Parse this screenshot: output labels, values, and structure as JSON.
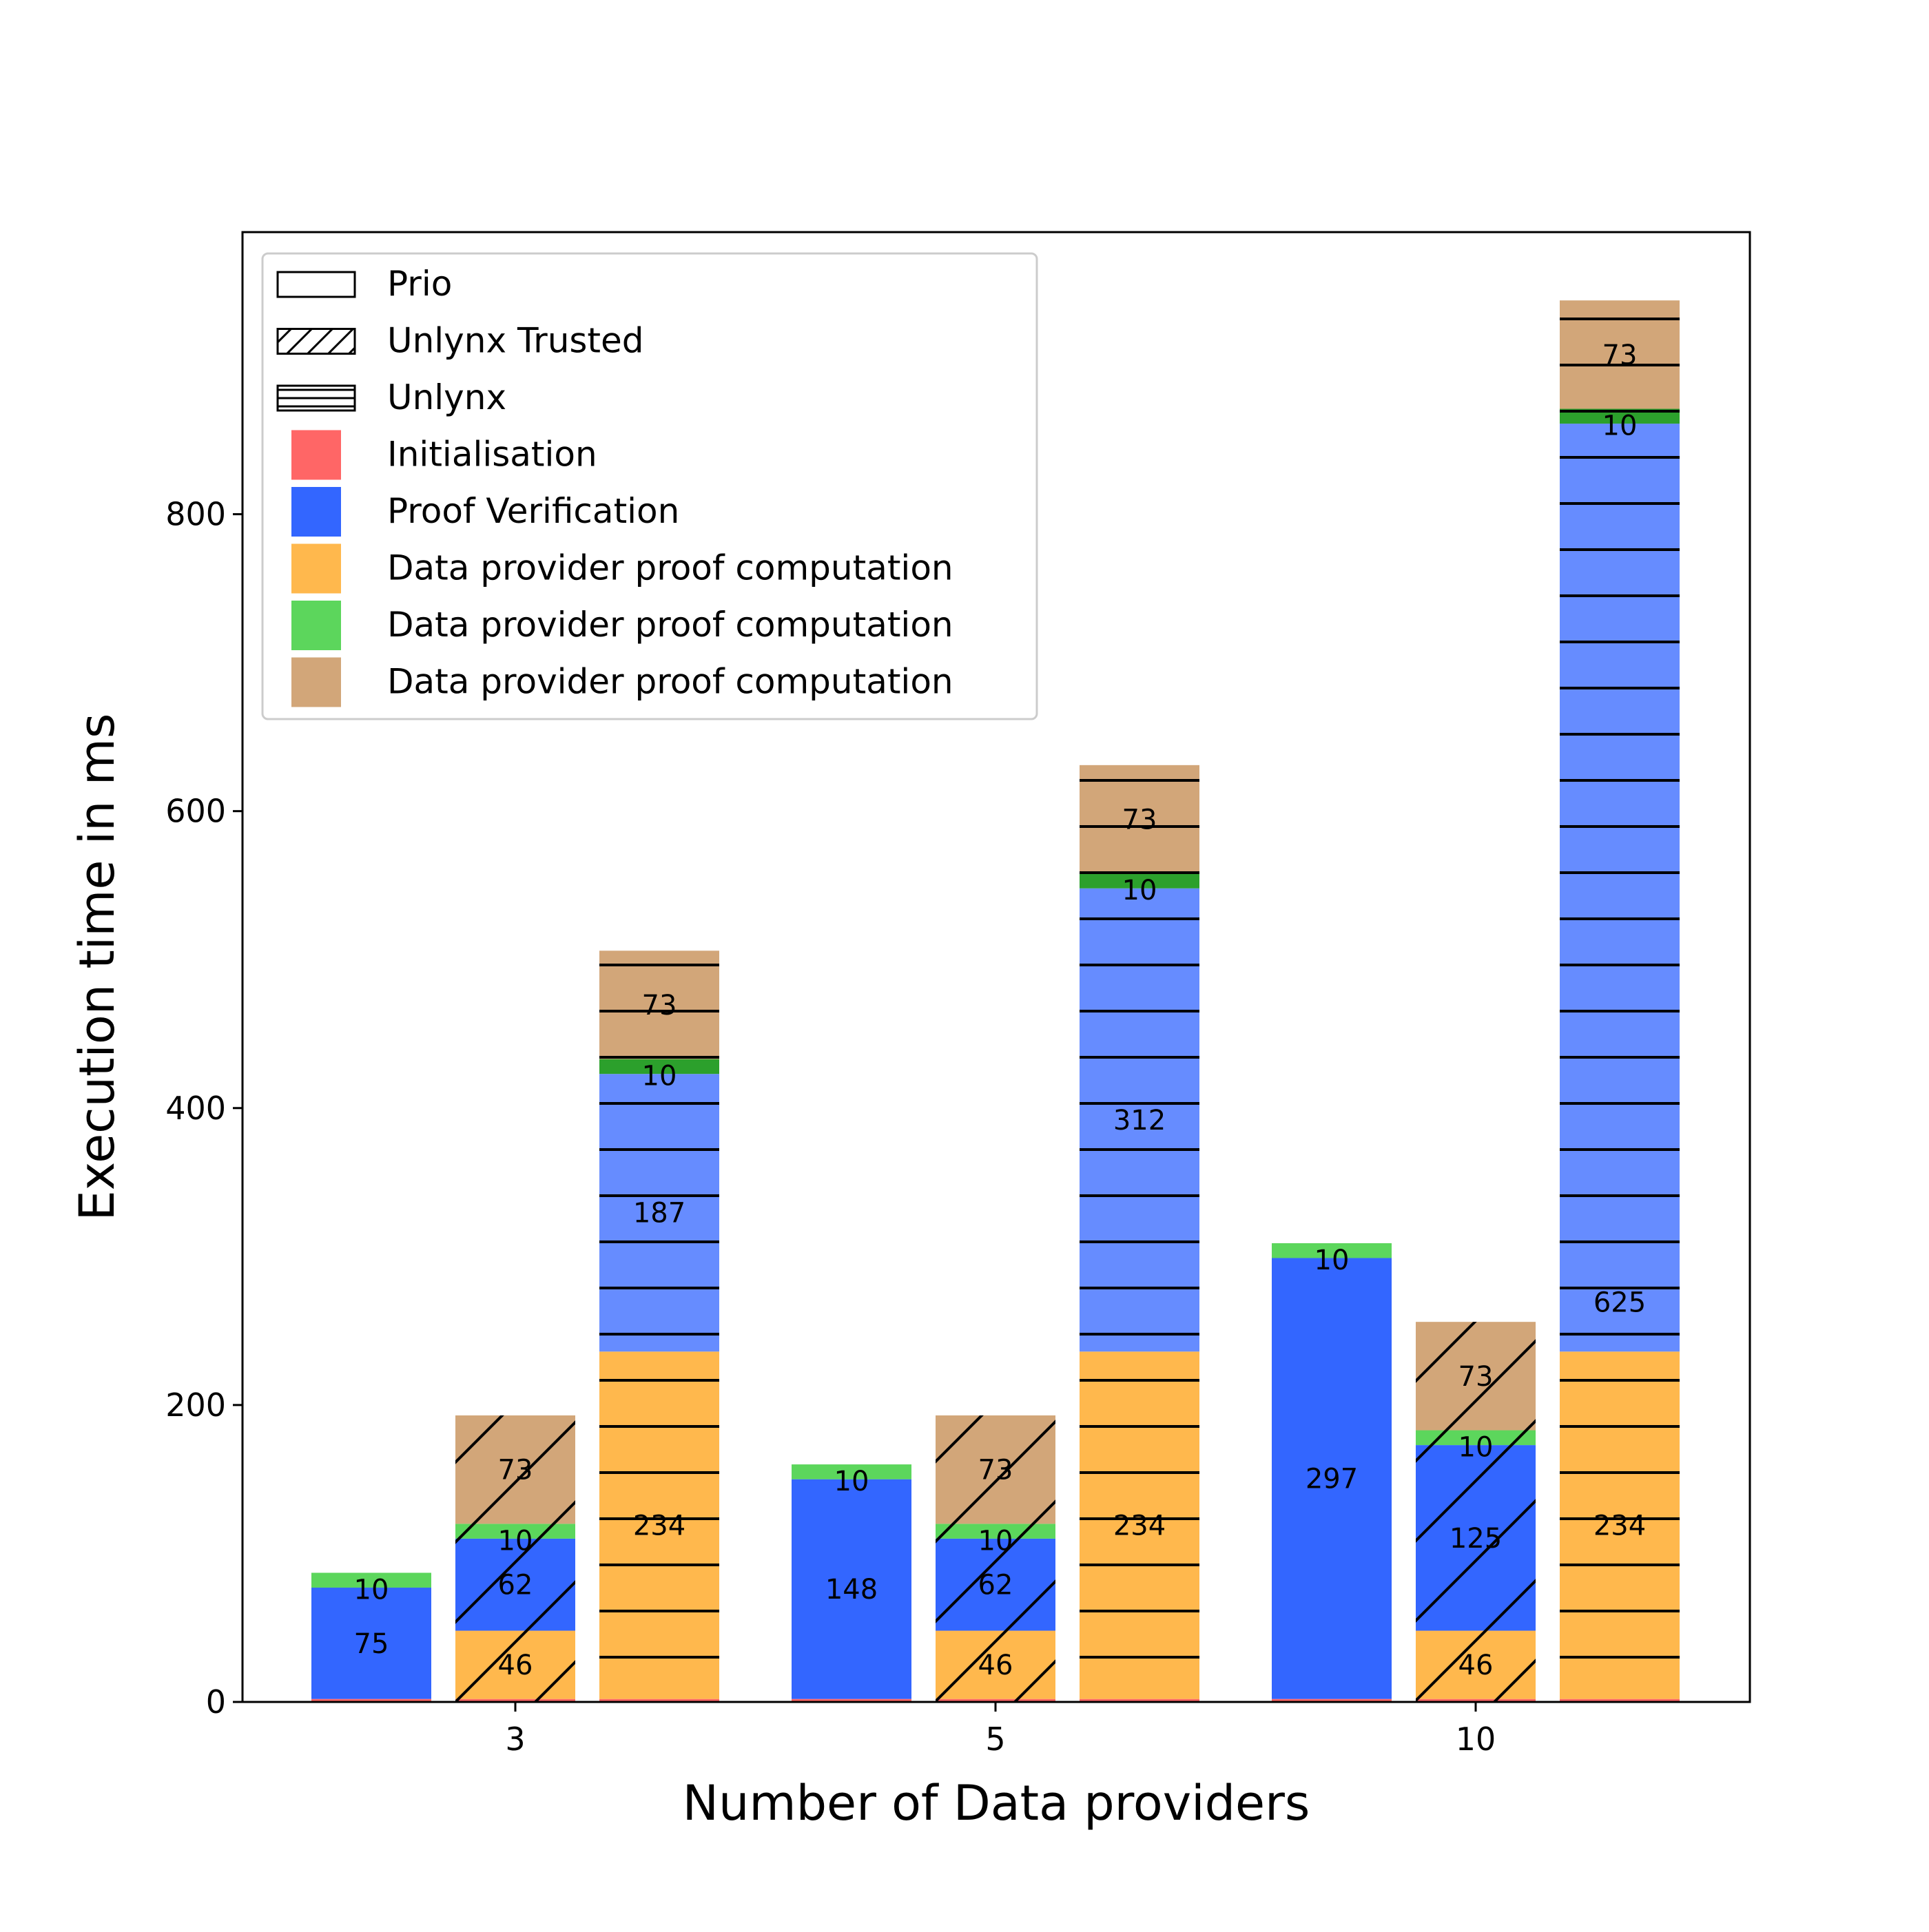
{
  "chart_data": {
    "type": "bar",
    "stacked": true,
    "xlabel": "Number of Data providers",
    "ylabel": "Execution time in ms",
    "ylim": [
      0,
      990
    ],
    "yticks": [
      0,
      200,
      400,
      600,
      800
    ],
    "grid": false,
    "legend_position": "upper-left",
    "group_ticks": [
      "3",
      "5",
      "10"
    ],
    "systems": [
      {
        "name": "Prio",
        "hatch": "none"
      },
      {
        "name": "Unlynx Trusted",
        "hatch": "diagonal"
      },
      {
        "name": "Unlynx",
        "hatch": "horizontal"
      }
    ],
    "components": [
      {
        "name": "Initialisation",
        "color": "#ff6666"
      },
      {
        "name": "Proof Verification",
        "color": "#3366ff"
      },
      {
        "name": "Data provider proof computation",
        "color": "#ffb84d"
      },
      {
        "name": "Data provider proof computation",
        "color": "#5cd65c"
      },
      {
        "name": "Data provider proof computation",
        "color": "#d2a679"
      }
    ],
    "bars": [
      {
        "group": "3",
        "system": "Prio",
        "stack": [
          {
            "component": "Initialisation",
            "value": 2,
            "label": ""
          },
          {
            "component": "Proof Verification",
            "value": 75,
            "label": "75",
            "color": "#3366ff"
          },
          {
            "component": "Data provider proof computation",
            "value": 10,
            "label": "10",
            "color": "#5cd65c"
          }
        ]
      },
      {
        "group": "3",
        "system": "Unlynx Trusted",
        "stack": [
          {
            "component": "Initialisation",
            "value": 2,
            "label": ""
          },
          {
            "component": "Data provider proof computation",
            "value": 46,
            "label": "46",
            "color": "#ffb84d"
          },
          {
            "component": "Proof Verification",
            "value": 62,
            "label": "62",
            "color": "#3366ff"
          },
          {
            "component": "Data provider proof computation",
            "value": 10,
            "label": "10",
            "color": "#5cd65c"
          },
          {
            "component": "Data provider proof computation",
            "value": 73,
            "label": "73",
            "color": "#d2a679"
          }
        ]
      },
      {
        "group": "3",
        "system": "Unlynx",
        "stack": [
          {
            "component": "Initialisation",
            "value": 2,
            "label": ""
          },
          {
            "component": "Data provider proof computation",
            "value": 234,
            "label": "234",
            "color": "#ffb84d"
          },
          {
            "component": "Proof Verification",
            "value": 187,
            "label": "187",
            "color": "#668cff"
          },
          {
            "component": "Data provider proof computation",
            "value": 10,
            "label": "10",
            "color": "#2ca02c"
          },
          {
            "component": "Data provider proof computation",
            "value": 73,
            "label": "73",
            "color": "#d2a679"
          }
        ]
      },
      {
        "group": "5",
        "system": "Prio",
        "stack": [
          {
            "component": "Initialisation",
            "value": 2,
            "label": ""
          },
          {
            "component": "Proof Verification",
            "value": 148,
            "label": "148",
            "color": "#3366ff"
          },
          {
            "component": "Data provider proof computation",
            "value": 10,
            "label": "10",
            "color": "#5cd65c"
          }
        ]
      },
      {
        "group": "5",
        "system": "Unlynx Trusted",
        "stack": [
          {
            "component": "Initialisation",
            "value": 2,
            "label": ""
          },
          {
            "component": "Data provider proof computation",
            "value": 46,
            "label": "46",
            "color": "#ffb84d"
          },
          {
            "component": "Proof Verification",
            "value": 62,
            "label": "62",
            "color": "#3366ff"
          },
          {
            "component": "Data provider proof computation",
            "value": 10,
            "label": "10",
            "color": "#5cd65c"
          },
          {
            "component": "Data provider proof computation",
            "value": 73,
            "label": "73",
            "color": "#d2a679"
          }
        ]
      },
      {
        "group": "5",
        "system": "Unlynx",
        "stack": [
          {
            "component": "Initialisation",
            "value": 2,
            "label": ""
          },
          {
            "component": "Data provider proof computation",
            "value": 234,
            "label": "234",
            "color": "#ffb84d"
          },
          {
            "component": "Proof Verification",
            "value": 312,
            "label": "312",
            "color": "#668cff"
          },
          {
            "component": "Data provider proof computation",
            "value": 10,
            "label": "10",
            "color": "#2ca02c"
          },
          {
            "component": "Data provider proof computation",
            "value": 73,
            "label": "73",
            "color": "#d2a679"
          }
        ]
      },
      {
        "group": "10",
        "system": "Prio",
        "stack": [
          {
            "component": "Initialisation",
            "value": 2,
            "label": ""
          },
          {
            "component": "Proof Verification",
            "value": 297,
            "label": "297",
            "color": "#3366ff"
          },
          {
            "component": "Data provider proof computation",
            "value": 10,
            "label": "10",
            "color": "#5cd65c"
          }
        ]
      },
      {
        "group": "10",
        "system": "Unlynx Trusted",
        "stack": [
          {
            "component": "Initialisation",
            "value": 2,
            "label": ""
          },
          {
            "component": "Data provider proof computation",
            "value": 46,
            "label": "46",
            "color": "#ffb84d"
          },
          {
            "component": "Proof Verification",
            "value": 125,
            "label": "125",
            "color": "#3366ff"
          },
          {
            "component": "Data provider proof computation",
            "value": 10,
            "label": "10",
            "color": "#5cd65c"
          },
          {
            "component": "Data provider proof computation",
            "value": 73,
            "label": "73",
            "color": "#d2a679"
          }
        ]
      },
      {
        "group": "10",
        "system": "Unlynx",
        "stack": [
          {
            "component": "Initialisation",
            "value": 2,
            "label": ""
          },
          {
            "component": "Data provider proof computation",
            "value": 234,
            "label": "234",
            "color": "#ffb84d"
          },
          {
            "component": "Proof Verification",
            "value": 625,
            "label": "625",
            "color": "#668cff"
          },
          {
            "component": "Data provider proof computation",
            "value": 10,
            "label": "10",
            "color": "#2ca02c"
          },
          {
            "component": "Data provider proof computation",
            "value": 73,
            "label": "73",
            "color": "#d2a679"
          }
        ]
      }
    ]
  }
}
